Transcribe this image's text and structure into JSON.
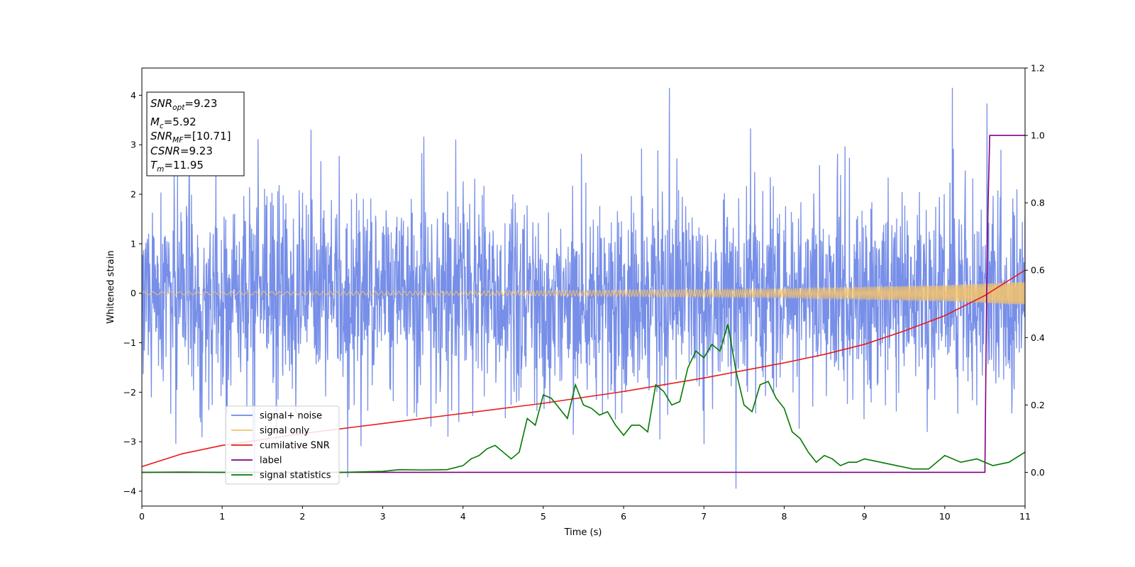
{
  "chart_data": {
    "type": "line",
    "xlabel": "Time (s)",
    "ylabel": "Whitened strain",
    "xlim": [
      0,
      11
    ],
    "ylim_left": [
      -4.3,
      4.55
    ],
    "ylim_right": [
      -0.1,
      1.2
    ],
    "x_ticks": [
      0,
      1,
      2,
      3,
      4,
      5,
      6,
      7,
      8,
      9,
      10,
      11
    ],
    "y_ticks_left": [
      -4,
      -3,
      -2,
      -1,
      0,
      1,
      2,
      3,
      4
    ],
    "y_ticks_right": [
      "0.0",
      "0.2",
      "0.4",
      "0.6",
      "0.8",
      "1.0",
      "1.2"
    ],
    "legend_placement": "lower-left",
    "grid": false,
    "series": [
      {
        "name": "signal+ noise",
        "axis": "left",
        "color": "#6b86e6",
        "kind": "noise",
        "std": 1.0,
        "x_range": [
          0,
          11
        ]
      },
      {
        "name": "signal only",
        "axis": "left",
        "color": "#f5c36b",
        "kind": "chirp",
        "amplitude_envelope": [
          [
            0,
            0.03
          ],
          [
            4,
            0.04
          ],
          [
            8,
            0.09
          ],
          [
            10,
            0.16
          ],
          [
            11,
            0.23
          ]
        ]
      },
      {
        "name": "cumilative SNR",
        "axis": "right",
        "color": "#e8191a",
        "x": [
          0,
          0.5,
          1,
          2,
          3,
          4,
          5,
          6,
          7,
          8,
          8.5,
          9,
          9.5,
          10,
          10.5,
          11
        ],
        "y": [
          0.017,
          0.055,
          0.08,
          0.115,
          0.145,
          0.175,
          0.205,
          0.24,
          0.28,
          0.325,
          0.35,
          0.38,
          0.42,
          0.465,
          0.525,
          0.6
        ]
      },
      {
        "name": "label",
        "axis": "right",
        "color": "#800080",
        "x": [
          0,
          10.5,
          10.52,
          10.54,
          10.56,
          10.58,
          11
        ],
        "y": [
          0,
          0,
          0.5,
          0.8,
          1.0,
          1.0,
          1.0
        ]
      },
      {
        "name": "signal statistics",
        "axis": "right",
        "color": "#027802",
        "x": [
          0,
          0.5,
          1,
          2,
          2.5,
          3,
          3.2,
          3.5,
          3.8,
          4,
          4.1,
          4.2,
          4.3,
          4.4,
          4.5,
          4.6,
          4.7,
          4.8,
          4.9,
          5,
          5.1,
          5.2,
          5.3,
          5.4,
          5.5,
          5.6,
          5.7,
          5.8,
          5.9,
          6,
          6.1,
          6.2,
          6.3,
          6.4,
          6.5,
          6.6,
          6.7,
          6.8,
          6.9,
          7,
          7.1,
          7.2,
          7.3,
          7.4,
          7.5,
          7.6,
          7.7,
          7.8,
          7.9,
          8,
          8.1,
          8.2,
          8.3,
          8.4,
          8.5,
          8.6,
          8.7,
          8.8,
          8.9,
          9,
          9.2,
          9.4,
          9.6,
          9.8,
          10,
          10.2,
          10.4,
          10.6,
          10.8,
          11
        ],
        "y": [
          0.0,
          0.001,
          0.0,
          0.0,
          0.0,
          0.003,
          0.008,
          0.007,
          0.008,
          0.02,
          0.04,
          0.05,
          0.07,
          0.08,
          0.06,
          0.04,
          0.06,
          0.16,
          0.14,
          0.23,
          0.22,
          0.19,
          0.16,
          0.26,
          0.2,
          0.19,
          0.17,
          0.18,
          0.14,
          0.11,
          0.14,
          0.14,
          0.12,
          0.26,
          0.24,
          0.2,
          0.21,
          0.31,
          0.36,
          0.34,
          0.38,
          0.36,
          0.44,
          0.3,
          0.2,
          0.18,
          0.26,
          0.27,
          0.22,
          0.19,
          0.12,
          0.1,
          0.06,
          0.03,
          0.05,
          0.04,
          0.02,
          0.03,
          0.03,
          0.04,
          0.03,
          0.02,
          0.01,
          0.01,
          0.05,
          0.03,
          0.04,
          0.02,
          0.03,
          0.06
        ]
      }
    ]
  },
  "info_box": {
    "lines": [
      {
        "base": "SNR",
        "sub": "opt",
        "value": "=9.23"
      },
      {
        "base": "M",
        "sub": "c",
        "value": "=5.92"
      },
      {
        "base": "SNR",
        "sub": "MF",
        "value": "=[10.71]"
      },
      {
        "base": "CSNR",
        "sub": "",
        "value": "=9.23"
      },
      {
        "base": "T",
        "sub": "m",
        "value": "=11.95"
      }
    ]
  }
}
